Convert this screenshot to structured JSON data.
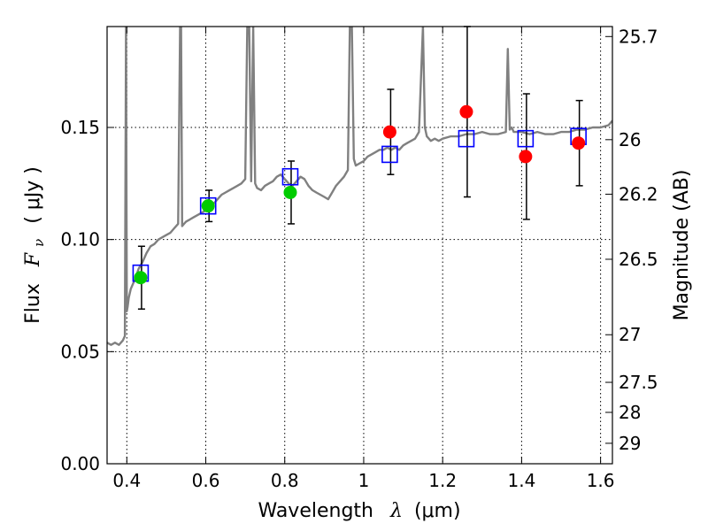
{
  "chart_data": {
    "type": "scatter",
    "xlabel_text": "Wavelength",
    "xlabel_symbol": "λ",
    "xlabel_unit": "(μm)",
    "ylabel_text": "Flux",
    "ylabel_symbol": "F",
    "ylabel_subscript": "ν",
    "ylabel_unit": "( μJy )",
    "y2label": "Magnitude (AB)",
    "xlim": [
      0.35,
      1.63
    ],
    "ylim": [
      0.0,
      0.195
    ],
    "grid": true,
    "x_ticks": [
      {
        "value": 0.4,
        "label": "0.4"
      },
      {
        "value": 0.6,
        "label": "0.6"
      },
      {
        "value": 0.8,
        "label": "0.8"
      },
      {
        "value": 1.0,
        "label": "1"
      },
      {
        "value": 1.2,
        "label": "1.2"
      },
      {
        "value": 1.4,
        "label": "1.4"
      },
      {
        "value": 1.6,
        "label": "1.6"
      }
    ],
    "y_ticks": [
      {
        "value": 0.0,
        "label": "0.00"
      },
      {
        "value": 0.05,
        "label": "0.05"
      },
      {
        "value": 0.1,
        "label": "0.10"
      },
      {
        "value": 0.15,
        "label": "0.15"
      }
    ],
    "mag_ticks": [
      {
        "value": 25.7,
        "label": "25.7"
      },
      {
        "value": 26.0,
        "label": "26"
      },
      {
        "value": 26.2,
        "label": "26.2"
      },
      {
        "value": 26.5,
        "label": "26.5"
      },
      {
        "value": 27.0,
        "label": "27"
      },
      {
        "value": 27.5,
        "label": "27.5"
      },
      {
        "value": 28.0,
        "label": "28"
      },
      {
        "value": 29.0,
        "label": "29"
      }
    ],
    "observed_green": [
      {
        "x": 0.435,
        "y": 0.083,
        "err": 0.014
      },
      {
        "x": 0.606,
        "y": 0.115,
        "err": 0.007
      },
      {
        "x": 0.814,
        "y": 0.121,
        "err": 0.014
      }
    ],
    "observed_red": [
      {
        "x": 1.066,
        "y": 0.148,
        "err": 0.019
      },
      {
        "x": 1.26,
        "y": 0.157,
        "err": 0.038
      },
      {
        "x": 1.41,
        "y": 0.137,
        "err": 0.028
      },
      {
        "x": 1.544,
        "y": 0.143,
        "err": 0.019
      }
    ],
    "model_squares": [
      {
        "x": 0.435,
        "y": 0.085
      },
      {
        "x": 0.606,
        "y": 0.115
      },
      {
        "x": 0.814,
        "y": 0.128
      },
      {
        "x": 1.066,
        "y": 0.138
      },
      {
        "x": 1.26,
        "y": 0.145
      },
      {
        "x": 1.41,
        "y": 0.145
      },
      {
        "x": 1.544,
        "y": 0.146
      }
    ],
    "model_spectrum": {
      "x": [
        0.35,
        0.36,
        0.37,
        0.38,
        0.39,
        0.395,
        0.398,
        0.4,
        0.402,
        0.405,
        0.41,
        0.42,
        0.43,
        0.44,
        0.45,
        0.46,
        0.47,
        0.48,
        0.49,
        0.5,
        0.51,
        0.52,
        0.53,
        0.535,
        0.5375,
        0.54,
        0.545,
        0.55,
        0.56,
        0.57,
        0.58,
        0.59,
        0.6,
        0.61,
        0.62,
        0.63,
        0.64,
        0.65,
        0.66,
        0.67,
        0.68,
        0.69,
        0.7,
        0.705,
        0.71,
        0.715,
        0.72,
        0.725,
        0.73,
        0.74,
        0.75,
        0.76,
        0.77,
        0.78,
        0.79,
        0.8,
        0.81,
        0.82,
        0.83,
        0.84,
        0.85,
        0.86,
        0.87,
        0.88,
        0.89,
        0.9,
        0.91,
        0.92,
        0.93,
        0.94,
        0.95,
        0.96,
        0.965,
        0.97,
        0.975,
        0.98,
        0.99,
        1.0,
        1.01,
        1.02,
        1.03,
        1.04,
        1.05,
        1.06,
        1.07,
        1.08,
        1.09,
        1.1,
        1.11,
        1.12,
        1.13,
        1.14,
        1.15,
        1.155,
        1.16,
        1.17,
        1.18,
        1.19,
        1.2,
        1.22,
        1.24,
        1.26,
        1.28,
        1.3,
        1.32,
        1.34,
        1.36,
        1.365,
        1.37,
        1.375,
        1.38,
        1.4,
        1.42,
        1.44,
        1.46,
        1.48,
        1.5,
        1.52,
        1.54,
        1.56,
        1.58,
        1.6,
        1.62,
        1.63
      ],
      "y": [
        0.054,
        0.053,
        0.054,
        0.053,
        0.055,
        0.057,
        0.195,
        0.068,
        0.07,
        0.074,
        0.078,
        0.082,
        0.087,
        0.09,
        0.094,
        0.097,
        0.098,
        0.1,
        0.101,
        0.102,
        0.103,
        0.105,
        0.107,
        0.195,
        0.195,
        0.106,
        0.107,
        0.108,
        0.109,
        0.11,
        0.111,
        0.112,
        0.113,
        0.114,
        0.116,
        0.118,
        0.12,
        0.121,
        0.122,
        0.123,
        0.124,
        0.125,
        0.127,
        0.195,
        0.195,
        0.126,
        0.195,
        0.125,
        0.123,
        0.122,
        0.124,
        0.125,
        0.126,
        0.128,
        0.129,
        0.127,
        0.125,
        0.124,
        0.126,
        0.128,
        0.127,
        0.124,
        0.122,
        0.121,
        0.12,
        0.119,
        0.118,
        0.121,
        0.124,
        0.126,
        0.128,
        0.131,
        0.195,
        0.195,
        0.136,
        0.133,
        0.134,
        0.135,
        0.137,
        0.138,
        0.139,
        0.14,
        0.14,
        0.141,
        0.14,
        0.141,
        0.14,
        0.142,
        0.143,
        0.144,
        0.145,
        0.148,
        0.195,
        0.15,
        0.146,
        0.144,
        0.145,
        0.144,
        0.145,
        0.146,
        0.146,
        0.147,
        0.147,
        0.148,
        0.147,
        0.147,
        0.148,
        0.185,
        0.149,
        0.15,
        0.148,
        0.148,
        0.147,
        0.148,
        0.147,
        0.147,
        0.148,
        0.148,
        0.149,
        0.149,
        0.15,
        0.15,
        0.151,
        0.153
      ]
    },
    "colors": {
      "spectrum": "#808080",
      "green_points": "#00cc00",
      "red_points": "#ff0000",
      "squares": "#0000ff",
      "errorbars": "#000000",
      "grid": "#000000"
    }
  }
}
